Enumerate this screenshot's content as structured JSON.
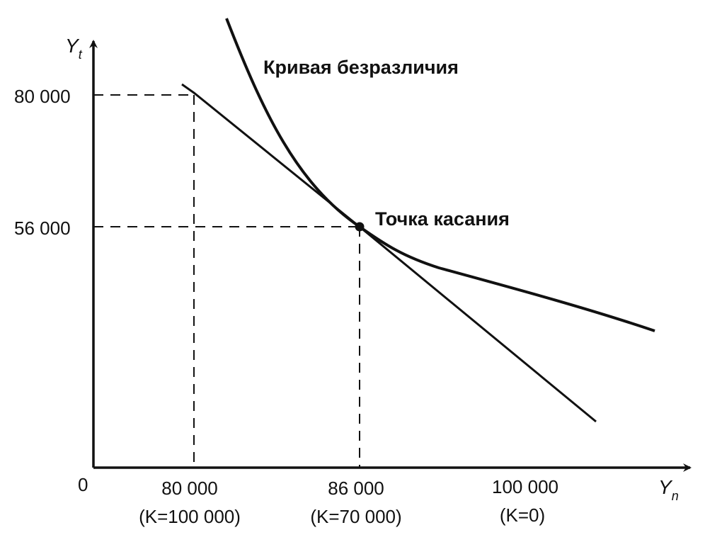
{
  "diagram": {
    "origin_label": "0",
    "y_axis": {
      "name": "Y",
      "subscript": "t"
    },
    "x_axis": {
      "name": "Y",
      "subscript": "n"
    },
    "y_ticks": [
      "80 000",
      "56 000"
    ],
    "x_ticks": [
      {
        "value": "80 000",
        "note": "(K=100 000)"
      },
      {
        "value": "86 000",
        "note": "(K=70 000)"
      },
      {
        "value": "100 000",
        "note": "(K=0)"
      }
    ],
    "curve_label": "Кривая безразличия",
    "point_label": "Точка касания"
  }
}
